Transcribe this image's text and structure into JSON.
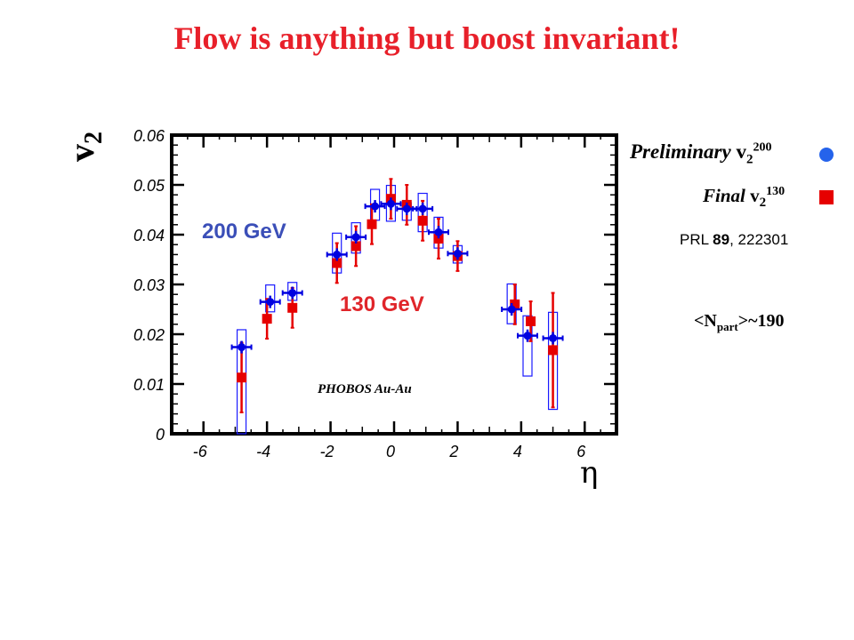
{
  "title": "Flow is anything but boost invariant!",
  "colors": {
    "title": "#e8202a",
    "series200": "#0000e0",
    "series130": "#e60000",
    "box": "#1a1aff",
    "label200": "#3b4fb8",
    "label130": "#e0252a",
    "legendDot": "#2563eb"
  },
  "legend": {
    "row1": {
      "prefix": "Preliminary",
      "v": "v",
      "sub": "2",
      "sup": "200",
      "marker": "blue-circle"
    },
    "row2": {
      "prefix": "Final",
      "v": "v",
      "sub": "2",
      "sup": "130",
      "marker": "red-square"
    }
  },
  "reference": {
    "prefix": "PRL ",
    "volume": "89",
    "suffix": ", 222301"
  },
  "npart": {
    "open": "<N",
    "sub": "part",
    "close": ">~190"
  },
  "chart_data": {
    "type": "scatter",
    "ylabel": {
      "base": "v",
      "sub": "2"
    },
    "xlabel": "η",
    "xlim": [
      -7,
      7
    ],
    "ylim": [
      0,
      0.06
    ],
    "xticks": [
      "-6",
      "-4",
      "-2",
      "0",
      "2",
      "4",
      "6"
    ],
    "yticks": [
      "0",
      "0.01",
      "0.02",
      "0.03",
      "0.04",
      "0.05",
      "0.06"
    ],
    "annotations": {
      "label200": "200 GeV",
      "label130": "130 GeV",
      "experiment": "PHOBOS Au-Au"
    },
    "series": [
      {
        "name": "200 GeV",
        "marker": "circle-cross",
        "x": [
          -4.8,
          -3.9,
          -3.2,
          -1.8,
          -1.2,
          -0.6,
          -0.1,
          0.4,
          0.9,
          1.4,
          2.0,
          3.7,
          4.2,
          5.0
        ],
        "y": [
          0.0174,
          0.0265,
          0.0283,
          0.036,
          0.0395,
          0.0457,
          0.0462,
          0.0452,
          0.0452,
          0.0405,
          0.0362,
          0.025,
          0.0197,
          0.0192
        ],
        "box_low": [
          0.0,
          0.0245,
          0.0268,
          0.0323,
          0.0363,
          0.0429,
          0.0427,
          0.0429,
          0.0406,
          0.0373,
          0.0343,
          0.0221,
          0.0116,
          0.0049
        ],
        "box_high": [
          0.0209,
          0.0299,
          0.0304,
          0.0403,
          0.0424,
          0.0491,
          0.0499,
          0.0464,
          0.0483,
          0.0435,
          0.0378,
          0.0301,
          0.0237,
          0.0244
        ]
      },
      {
        "name": "130 GeV",
        "marker": "square",
        "x": [
          -4.8,
          -4.0,
          -3.2,
          -1.8,
          -1.2,
          -0.7,
          -0.1,
          0.4,
          0.9,
          1.4,
          2.0,
          3.8,
          4.3,
          5.0
        ],
        "y": [
          0.0113,
          0.0231,
          0.0253,
          0.0343,
          0.0377,
          0.0421,
          0.0472,
          0.046,
          0.0428,
          0.0392,
          0.0357,
          0.026,
          0.0226,
          0.0168
        ],
        "err": [
          0.007,
          0.004,
          0.004,
          0.004,
          0.004,
          0.004,
          0.004,
          0.004,
          0.004,
          0.004,
          0.003,
          0.004,
          0.004,
          0.0115
        ]
      }
    ]
  }
}
